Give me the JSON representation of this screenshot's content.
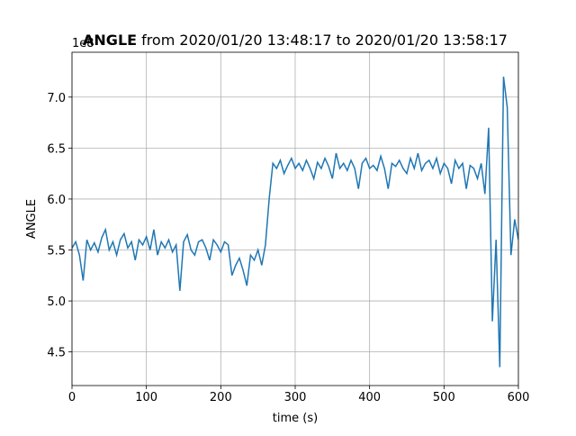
{
  "chart_data": {
    "type": "line",
    "title_bold": "ANGLE",
    "title": "from 2020/01/20 13:48:17 to 2020/01/20 13:58:17",
    "xlabel": "time (s)",
    "ylabel": "ANGLE",
    "offset_text": "1e8",
    "xlim": [
      0,
      600
    ],
    "xticks": [
      0,
      100,
      200,
      300,
      400,
      500,
      600
    ],
    "ylim": [
      4.17,
      7.44
    ],
    "yticks": [
      {
        "value": 4.5,
        "label": "4.5"
      },
      {
        "value": 5,
        "label": "5.0"
      },
      {
        "value": 5.5,
        "label": "5.5"
      },
      {
        "value": 6,
        "label": "6.0"
      },
      {
        "value": 6.5,
        "label": "6.5"
      },
      {
        "value": 7,
        "label": "7.0"
      }
    ],
    "grid": true,
    "series": [
      {
        "color": "#1f77b4",
        "x": [
          0,
          5,
          10,
          15,
          20,
          25,
          30,
          35,
          40,
          45,
          50,
          55,
          60,
          65,
          70,
          75,
          80,
          85,
          90,
          95,
          100,
          105,
          110,
          115,
          120,
          125,
          130,
          135,
          140,
          145,
          150,
          155,
          160,
          165,
          170,
          175,
          180,
          185,
          190,
          195,
          200,
          205,
          210,
          215,
          220,
          225,
          230,
          235,
          240,
          245,
          250,
          255,
          260,
          265,
          270,
          275,
          280,
          285,
          290,
          295,
          300,
          305,
          310,
          315,
          320,
          325,
          330,
          335,
          340,
          345,
          350,
          355,
          360,
          365,
          370,
          375,
          380,
          385,
          390,
          395,
          400,
          405,
          410,
          415,
          420,
          425,
          430,
          435,
          440,
          445,
          450,
          455,
          460,
          465,
          470,
          475,
          480,
          485,
          490,
          495,
          500,
          505,
          510,
          515,
          520,
          525,
          530,
          535,
          540,
          545,
          550,
          555,
          560,
          565,
          570,
          575,
          580,
          585,
          590,
          595,
          600
        ],
        "values": [
          5.52,
          5.58,
          5.45,
          5.2,
          5.6,
          5.5,
          5.57,
          5.48,
          5.62,
          5.7,
          5.5,
          5.58,
          5.45,
          5.6,
          5.66,
          5.52,
          5.58,
          5.4,
          5.6,
          5.55,
          5.63,
          5.5,
          5.7,
          5.45,
          5.58,
          5.52,
          5.6,
          5.48,
          5.55,
          5.1,
          5.58,
          5.65,
          5.5,
          5.45,
          5.58,
          5.6,
          5.52,
          5.4,
          5.6,
          5.55,
          5.48,
          5.58,
          5.55,
          5.25,
          5.35,
          5.42,
          5.3,
          5.15,
          5.45,
          5.4,
          5.5,
          5.35,
          5.55,
          6.0,
          6.35,
          6.3,
          6.38,
          6.25,
          6.33,
          6.4,
          6.3,
          6.35,
          6.28,
          6.38,
          6.3,
          6.2,
          6.36,
          6.3,
          6.4,
          6.32,
          6.2,
          6.45,
          6.3,
          6.35,
          6.28,
          6.38,
          6.3,
          6.1,
          6.35,
          6.4,
          6.3,
          6.33,
          6.28,
          6.42,
          6.3,
          6.1,
          6.35,
          6.32,
          6.38,
          6.3,
          6.25,
          6.4,
          6.3,
          6.45,
          6.28,
          6.35,
          6.38,
          6.3,
          6.4,
          6.25,
          6.35,
          6.3,
          6.15,
          6.38,
          6.3,
          6.35,
          6.1,
          6.33,
          6.3,
          6.2,
          6.35,
          6.05,
          6.7,
          4.8,
          5.6,
          4.35,
          7.2,
          6.9,
          5.45,
          5.8,
          5.6
        ]
      }
    ]
  }
}
